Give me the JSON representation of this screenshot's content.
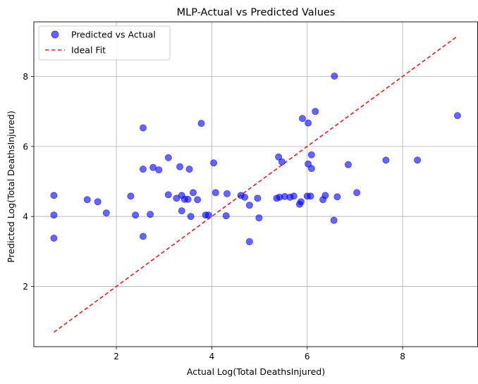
{
  "chart_data": {
    "type": "scatter",
    "title": "MLP-Actual vs Predicted Values",
    "xlabel": "Actual Log(Total DeathsInjured)",
    "ylabel": "Predicted Log(Total DeathsInjured)",
    "xlim": [
      0.27,
      9.58
    ],
    "ylim": [
      0.28,
      9.56
    ],
    "xticks": [
      2,
      4,
      6,
      8
    ],
    "yticks": [
      2,
      4,
      6,
      8
    ],
    "grid": true,
    "legend_position": "top-left",
    "series": [
      {
        "name": "Predicted vs Actual",
        "kind": "scatter",
        "color": "#0000ff",
        "alpha": 0.6,
        "points": [
          [
            0.69,
            4.6
          ],
          [
            0.69,
            4.04
          ],
          [
            0.69,
            3.38
          ],
          [
            1.39,
            4.48
          ],
          [
            1.61,
            4.42
          ],
          [
            1.79,
            4.1
          ],
          [
            2.3,
            4.58
          ],
          [
            2.4,
            4.04
          ],
          [
            2.56,
            6.53
          ],
          [
            2.56,
            5.35
          ],
          [
            2.56,
            3.43
          ],
          [
            2.71,
            4.06
          ],
          [
            2.77,
            5.4
          ],
          [
            2.89,
            5.33
          ],
          [
            3.09,
            5.68
          ],
          [
            3.09,
            4.62
          ],
          [
            3.26,
            4.52
          ],
          [
            3.33,
            5.42
          ],
          [
            3.37,
            4.6
          ],
          [
            3.37,
            4.16
          ],
          [
            3.43,
            4.49
          ],
          [
            3.5,
            4.49
          ],
          [
            3.53,
            5.35
          ],
          [
            3.56,
            4.0
          ],
          [
            3.61,
            4.68
          ],
          [
            3.7,
            4.48
          ],
          [
            3.78,
            6.66
          ],
          [
            3.87,
            4.04
          ],
          [
            3.93,
            4.04
          ],
          [
            4.04,
            5.53
          ],
          [
            4.08,
            4.68
          ],
          [
            4.32,
            4.65
          ],
          [
            4.3,
            4.02
          ],
          [
            4.61,
            4.6
          ],
          [
            4.69,
            4.55
          ],
          [
            4.79,
            4.32
          ],
          [
            4.79,
            3.28
          ],
          [
            4.96,
            4.52
          ],
          [
            4.99,
            3.96
          ],
          [
            5.36,
            4.52
          ],
          [
            5.4,
            5.7
          ],
          [
            5.42,
            4.55
          ],
          [
            5.47,
            5.56
          ],
          [
            5.53,
            4.57
          ],
          [
            5.64,
            4.55
          ],
          [
            5.72,
            4.58
          ],
          [
            5.84,
            4.35
          ],
          [
            5.87,
            4.42
          ],
          [
            5.9,
            6.8
          ],
          [
            6.0,
            4.58
          ],
          [
            6.02,
            6.67
          ],
          [
            6.02,
            5.5
          ],
          [
            6.07,
            4.58
          ],
          [
            6.09,
            5.76
          ],
          [
            6.09,
            5.37
          ],
          [
            6.17,
            7.0
          ],
          [
            6.33,
            4.48
          ],
          [
            6.38,
            4.6
          ],
          [
            6.56,
            3.89
          ],
          [
            6.57,
            8.01
          ],
          [
            6.63,
            4.56
          ],
          [
            6.86,
            5.48
          ],
          [
            7.04,
            4.68
          ],
          [
            7.65,
            5.61
          ],
          [
            8.31,
            5.61
          ],
          [
            9.15,
            6.88
          ]
        ]
      },
      {
        "name": "Ideal Fit",
        "kind": "line",
        "color": "#e41a1c",
        "dash": "dashed",
        "points": [
          [
            0.69,
            0.69
          ],
          [
            9.15,
            9.15
          ]
        ]
      }
    ]
  }
}
